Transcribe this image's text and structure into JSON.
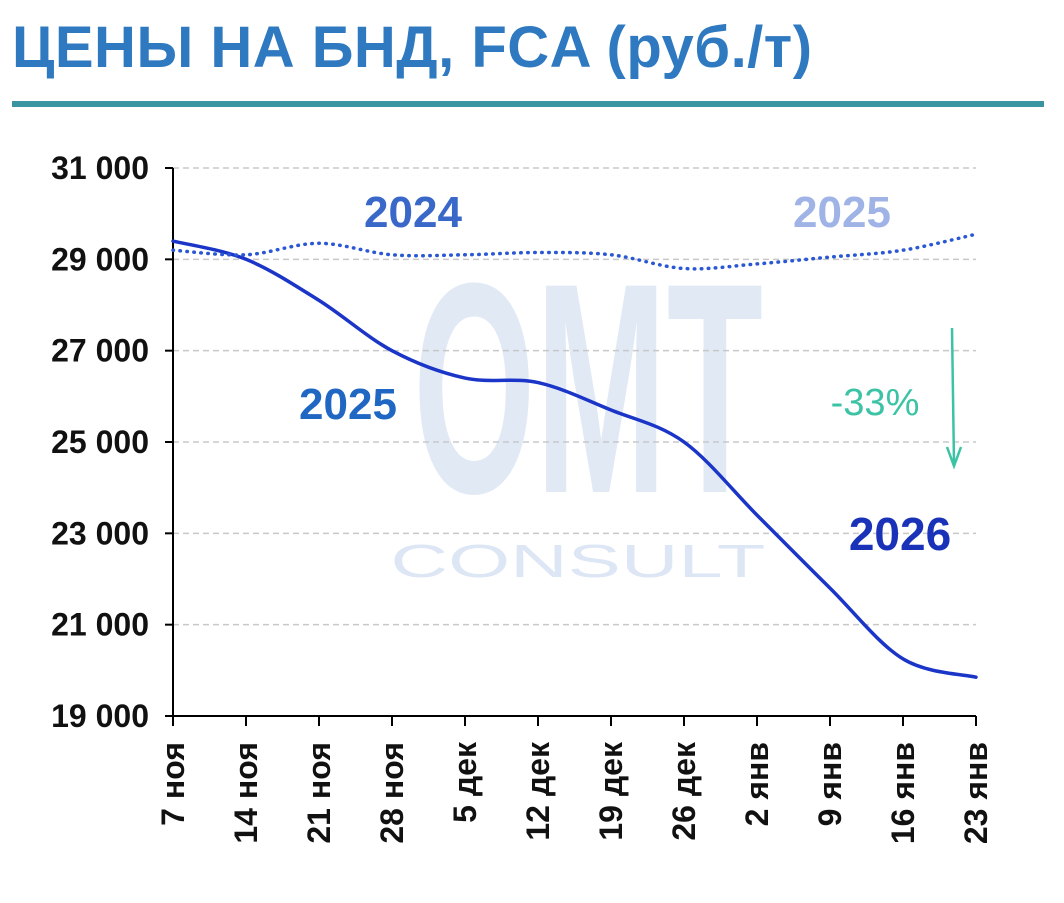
{
  "header": {
    "title": "ЦЕНЫ НА БНД, FCA (руб./т)"
  },
  "watermark": {
    "big": "OMT",
    "small": "CONSULT"
  },
  "annotations": {
    "label_2024": "2024",
    "label_2025_dotted": "2025",
    "label_2025_solid": "2025",
    "label_2026": "2026",
    "change": "-33%"
  },
  "colors": {
    "solid_line": "#1a35c7",
    "dotted_line": "#2a57d4",
    "label_2024": "#3a68c8",
    "label_2025_dotted": "#9fb3e6",
    "label_2025_solid": "#1f67c2",
    "label_2026": "#1a32b8",
    "change": "#3cc3a5",
    "title": "#2e79c0",
    "rule": "#3a95a2"
  },
  "chart_data": {
    "type": "line",
    "title": "ЦЕНЫ НА БНД, FCA (руб./т)",
    "xlabel": "",
    "ylabel": "",
    "categories": [
      "7 ноя",
      "14 ноя",
      "21 ноя",
      "28 ноя",
      "5 дек",
      "12 дек",
      "19 дек",
      "26 дек",
      "2 янв",
      "9 янв",
      "16 янв",
      "23 янв"
    ],
    "yticks": [
      "19 000",
      "21 000",
      "23 000",
      "25 000",
      "27 000",
      "29 000",
      "31 000"
    ],
    "ylim": [
      19000,
      31000
    ],
    "grid": true,
    "series": [
      {
        "style": "solid",
        "values": [
          29400,
          29000,
          28100,
          27000,
          26400,
          26300,
          25700,
          25000,
          23400,
          21800,
          20250,
          19850
        ]
      },
      {
        "style": "dotted",
        "values": [
          29200,
          29100,
          29350,
          29100,
          29100,
          29150,
          29100,
          28800,
          28900,
          29050,
          29200,
          29550
        ]
      }
    ]
  }
}
